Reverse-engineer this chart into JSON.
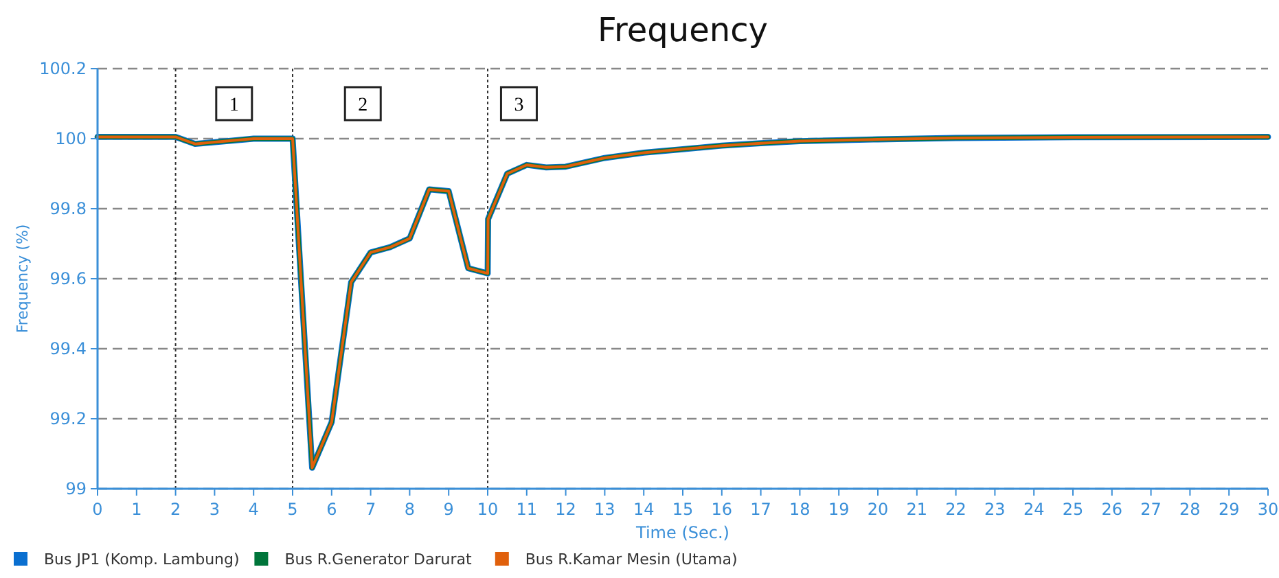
{
  "chart_data": {
    "type": "line",
    "title": "Frequency",
    "xlabel": "Time (Sec.)",
    "ylabel": "Frequency (%)",
    "x": [
      0,
      2,
      2.5,
      3,
      3.5,
      4,
      5,
      5.5,
      6,
      6.5,
      7,
      7.5,
      8,
      8.5,
      9,
      9.5,
      10,
      10.01,
      10.5,
      11,
      11.5,
      12,
      13,
      14,
      15,
      16,
      17,
      18,
      20,
      22,
      25,
      30
    ],
    "series": [
      {
        "name": "Bus JP1 (Komp. Lambung)",
        "color": "#0a6fd0",
        "values": [
          100.005,
          100.005,
          99.985,
          99.99,
          99.995,
          100,
          100,
          99.06,
          99.19,
          99.59,
          99.675,
          99.69,
          99.715,
          99.855,
          99.85,
          99.63,
          99.615,
          99.77,
          99.9,
          99.925,
          99.918,
          99.92,
          99.945,
          99.96,
          99.97,
          99.98,
          99.987,
          99.993,
          99.998,
          100.002,
          100.004,
          100.005
        ]
      },
      {
        "name": "Bus R.Generator Darurat",
        "color": "#00753a",
        "values": [
          100.005,
          100.005,
          99.985,
          99.99,
          99.995,
          100,
          100,
          99.06,
          99.19,
          99.59,
          99.675,
          99.69,
          99.715,
          99.855,
          99.85,
          99.63,
          99.615,
          99.77,
          99.9,
          99.925,
          99.918,
          99.92,
          99.945,
          99.96,
          99.97,
          99.98,
          99.987,
          99.993,
          99.998,
          100.002,
          100.004,
          100.005
        ]
      },
      {
        "name": "Bus R.Kamar Mesin (Utama)",
        "color": "#e0600c",
        "values": [
          100.005,
          100.005,
          99.985,
          99.99,
          99.995,
          100,
          100,
          99.06,
          99.19,
          99.59,
          99.675,
          99.69,
          99.715,
          99.855,
          99.85,
          99.63,
          99.615,
          99.77,
          99.9,
          99.925,
          99.918,
          99.92,
          99.945,
          99.96,
          99.97,
          99.98,
          99.987,
          99.993,
          99.998,
          100.002,
          100.004,
          100.005
        ]
      }
    ],
    "xlim": [
      0,
      30
    ],
    "xticks": [
      0,
      1,
      2,
      3,
      4,
      5,
      6,
      7,
      8,
      9,
      10,
      11,
      12,
      13,
      14,
      15,
      16,
      17,
      18,
      19,
      20,
      21,
      22,
      23,
      24,
      25,
      26,
      27,
      28,
      29,
      30
    ],
    "ylim": [
      99,
      100.2
    ],
    "yticks": [
      {
        "value": 99,
        "label": "99"
      },
      {
        "value": 99.2,
        "label": "99.2"
      },
      {
        "value": 99.4,
        "label": "99.4"
      },
      {
        "value": 99.6,
        "label": "99.6"
      },
      {
        "value": 99.8,
        "label": "99.8"
      },
      {
        "value": 100,
        "label": "100"
      },
      {
        "value": 100.2,
        "label": "100.2"
      }
    ],
    "grid": "y",
    "legend": "bottom left",
    "marker": "none",
    "line_style": "solid",
    "ref_lines": [
      {
        "axis": "x",
        "value": 2,
        "line_style": "dotted"
      },
      {
        "axis": "x",
        "value": 5,
        "line_style": "dotted"
      },
      {
        "axis": "x",
        "value": 10,
        "line_style": "dotted"
      }
    ],
    "annotations": [
      {
        "text": "1",
        "x": 3.5,
        "y": 100.1
      },
      {
        "text": "2",
        "x": 6.8,
        "y": 100.1
      },
      {
        "text": "3",
        "x": 10.8,
        "y": 100.1
      }
    ]
  }
}
